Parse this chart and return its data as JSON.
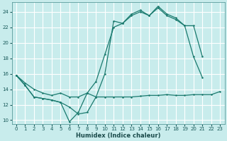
{
  "xlabel": "Humidex (Indice chaleur)",
  "bg_color": "#c8ecec",
  "grid_color": "#ffffff",
  "line_color": "#1a7a6e",
  "xlim": [
    -0.5,
    23.5
  ],
  "ylim": [
    9.5,
    25.2
  ],
  "xticks": [
    0,
    1,
    2,
    3,
    4,
    5,
    6,
    7,
    8,
    9,
    10,
    11,
    12,
    13,
    14,
    15,
    16,
    17,
    18,
    19,
    20,
    21,
    22,
    23
  ],
  "yticks": [
    10,
    12,
    14,
    16,
    18,
    20,
    22,
    24
  ],
  "line1_x": [
    0,
    1,
    2,
    3,
    4,
    5,
    6,
    7,
    8,
    9,
    10,
    11,
    12,
    13,
    14,
    15,
    16,
    17,
    18,
    19,
    20,
    21,
    22,
    23
  ],
  "line1_y": [
    15.8,
    14.5,
    13.0,
    12.8,
    12.6,
    12.3,
    11.7,
    10.8,
    11.0,
    13.0,
    13.0,
    13.0,
    13.0,
    13.0,
    13.1,
    13.2,
    13.2,
    13.3,
    13.2,
    13.2,
    13.3,
    13.3,
    13.3,
    13.7
  ],
  "line2_x": [
    0,
    1,
    2,
    3,
    4,
    5,
    6,
    7,
    8,
    9,
    10,
    11,
    12,
    13,
    14,
    15,
    16,
    17,
    18,
    19,
    20,
    21
  ],
  "line2_y": [
    15.8,
    14.5,
    13.0,
    12.8,
    12.6,
    12.3,
    9.8,
    11.0,
    13.5,
    13.0,
    16.0,
    22.8,
    22.5,
    23.7,
    24.2,
    23.5,
    24.7,
    23.7,
    23.2,
    22.2,
    18.2,
    15.5
  ],
  "line3_x": [
    0,
    1,
    2,
    3,
    4,
    5,
    6,
    7,
    8,
    9,
    10,
    11,
    12,
    13,
    14,
    15,
    16,
    17,
    18,
    19,
    20,
    21
  ],
  "line3_y": [
    15.8,
    14.8,
    14.0,
    13.5,
    13.2,
    13.5,
    13.0,
    13.0,
    13.5,
    15.0,
    18.5,
    22.0,
    22.5,
    23.5,
    24.0,
    23.5,
    24.5,
    23.5,
    23.0,
    22.2,
    22.2,
    18.2
  ]
}
